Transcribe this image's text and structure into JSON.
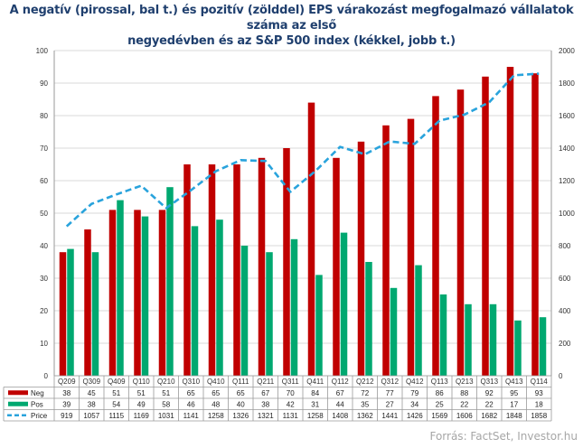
{
  "title_lines": [
    "A negatív (pirossal, bal t.) és pozitív (zölddel) EPS várakozást megfogalmazó vállalatok száma az első",
    "negyedévben és az S&P 500 index (kékkel, jobb t.)"
  ],
  "source": "Forrás: FactSet, Investor.hu",
  "colors": {
    "neg": "#c00000",
    "pos": "#00a870",
    "price": "#29a3dc"
  },
  "chart_data": {
    "type": "bar",
    "categories": [
      "Q209",
      "Q309",
      "Q409",
      "Q110",
      "Q210",
      "Q310",
      "Q410",
      "Q111",
      "Q211",
      "Q311",
      "Q411",
      "Q112",
      "Q212",
      "Q312",
      "Q412",
      "Q113",
      "Q213",
      "Q313",
      "Q413",
      "Q114"
    ],
    "series": [
      {
        "name": "Neg",
        "axis": "left",
        "values": [
          38,
          45,
          51,
          51,
          51,
          65,
          65,
          65,
          67,
          70,
          84,
          67,
          72,
          77,
          79,
          86,
          88,
          92,
          95,
          93
        ]
      },
      {
        "name": "Pos",
        "axis": "left",
        "values": [
          39,
          38,
          54,
          49,
          58,
          46,
          48,
          40,
          38,
          42,
          31,
          44,
          35,
          27,
          34,
          25,
          22,
          22,
          17,
          18
        ]
      },
      {
        "name": "Price",
        "axis": "right",
        "type": "line",
        "style": "dashed",
        "values": [
          919,
          1057,
          1115,
          1169,
          1031,
          1141,
          1258,
          1326,
          1321,
          1131,
          1258,
          1408,
          1362,
          1441,
          1426,
          1569,
          1606,
          1682,
          1848,
          1858
        ]
      }
    ],
    "ylim": [
      0,
      100
    ],
    "yticks": [
      0,
      10,
      20,
      30,
      40,
      50,
      60,
      70,
      80,
      90,
      100
    ],
    "y2lim": [
      0,
      2000
    ],
    "y2ticks": [
      0,
      200,
      400,
      600,
      800,
      1000,
      1200,
      1400,
      1600,
      1800,
      2000
    ],
    "grid": true,
    "legend": "data-table-left"
  }
}
